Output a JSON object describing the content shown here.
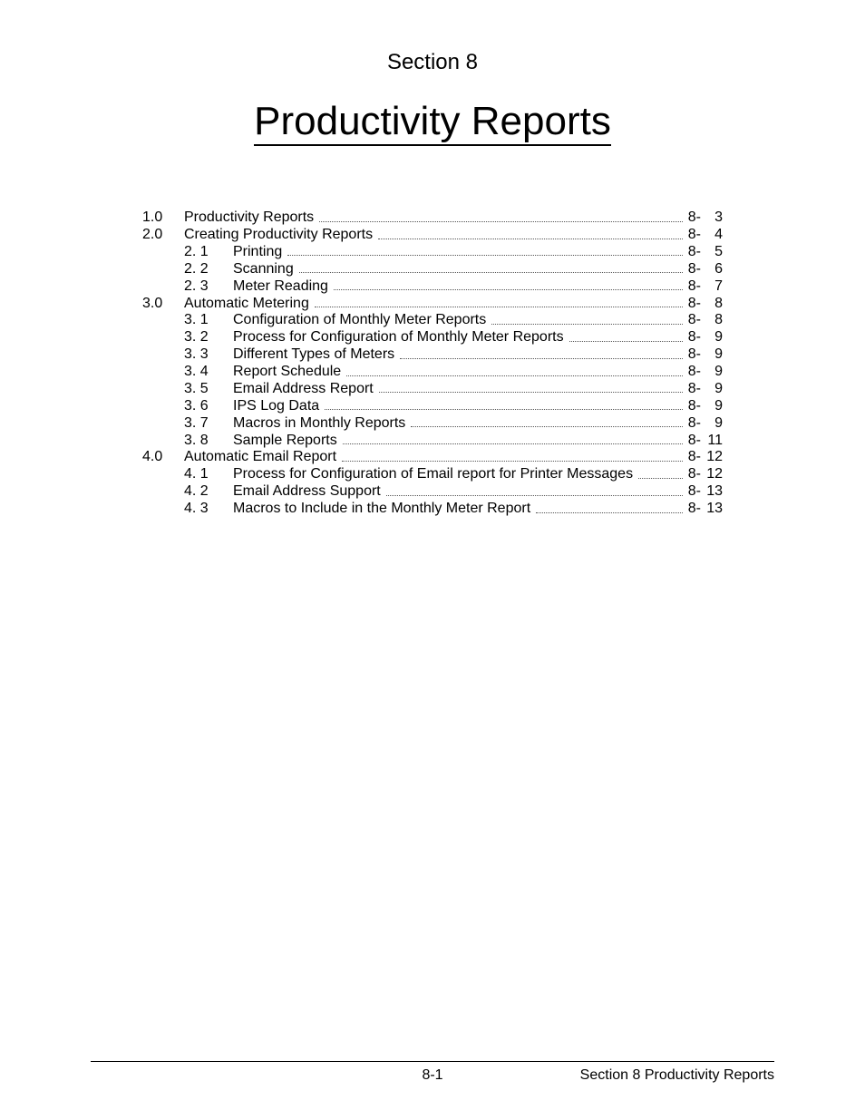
{
  "section_label": "Section 8",
  "section_label_fontsize": 24,
  "main_title": "Productivity Reports",
  "main_title_fontsize": 44,
  "toc": {
    "fontsize": 16,
    "line_height": 1.18,
    "page_prefix": "8-",
    "entries": [
      {
        "level": 1,
        "num": "1.0",
        "title": "Productivity Reports",
        "page": "3"
      },
      {
        "level": 1,
        "num": "2.0",
        "title": "Creating Productivity Reports",
        "page": "4"
      },
      {
        "level": 2,
        "num": "2. 1",
        "title": "Printing",
        "page": "5"
      },
      {
        "level": 2,
        "num": "2. 2",
        "title": "Scanning",
        "page": "6"
      },
      {
        "level": 2,
        "num": "2. 3",
        "title": "Meter Reading",
        "page": "7"
      },
      {
        "level": 1,
        "num": "3.0",
        "title": "Automatic Metering",
        "page": "8"
      },
      {
        "level": 2,
        "num": "3. 1",
        "title": "Configuration of Monthly Meter Reports",
        "page": "8"
      },
      {
        "level": 2,
        "num": "3. 2",
        "title": "Process for Configuration of Monthly Meter Reports",
        "page": "9"
      },
      {
        "level": 2,
        "num": "3. 3",
        "title": "Different Types of Meters",
        "page": "9"
      },
      {
        "level": 2,
        "num": "3. 4",
        "title": "Report Schedule",
        "page": "9"
      },
      {
        "level": 2,
        "num": "3. 5",
        "title": "Email Address Report",
        "page": "9"
      },
      {
        "level": 2,
        "num": "3. 6",
        "title": "IPS Log Data",
        "page": "9"
      },
      {
        "level": 2,
        "num": "3. 7",
        "title": "Macros in Monthly Reports",
        "page": "9"
      },
      {
        "level": 2,
        "num": "3. 8",
        "title": "Sample Reports",
        "page": "11"
      },
      {
        "level": 1,
        "num": "4.0",
        "title": "Automatic Email Report",
        "page": "12"
      },
      {
        "level": 2,
        "num": "4. 1",
        "title": "Process for Configuration of Email report for Printer Messages",
        "page": "12"
      },
      {
        "level": 2,
        "num": "4. 2",
        "title": "Email Address Support",
        "page": "13"
      },
      {
        "level": 2,
        "num": "4. 3",
        "title": "Macros to Include in the Monthly Meter Report",
        "page": "13"
      }
    ]
  },
  "footer": {
    "center": "8-1",
    "right": "Section 8     Productivity Reports",
    "fontsize": 16
  },
  "colors": {
    "text": "#000000",
    "background": "#ffffff",
    "leader": "#555555"
  }
}
